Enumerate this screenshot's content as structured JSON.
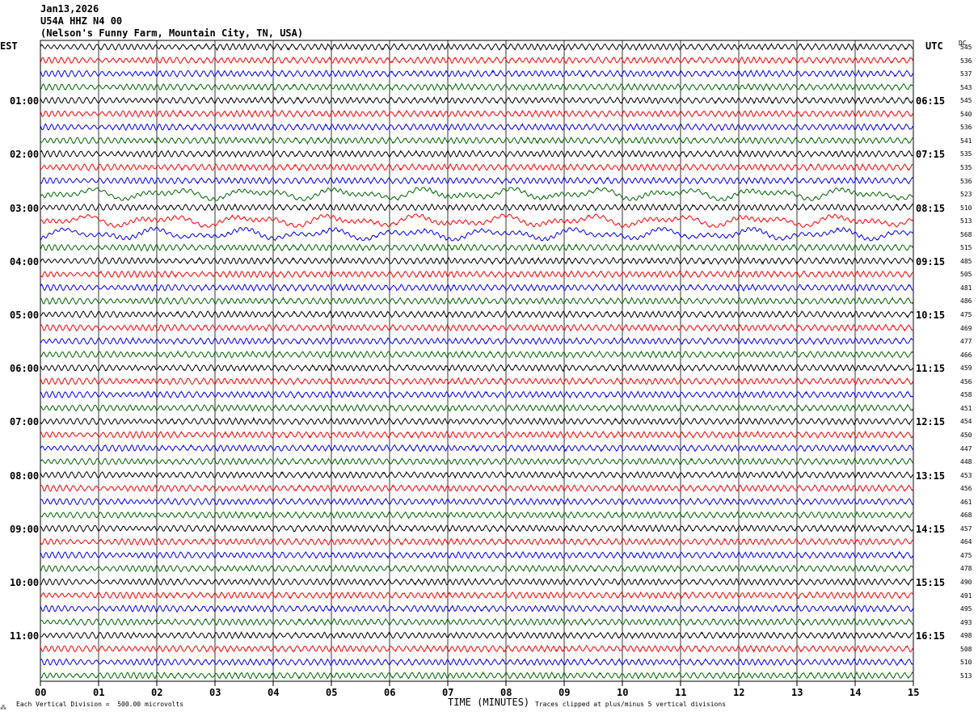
{
  "header": {
    "date": "Jan13,2026",
    "station": "U54A HHZ N4 00",
    "location": "(Nelson's Funny Farm, Mountain City, TN, USA)"
  },
  "left_axis_label": "EST",
  "right_axis_label": "UTC",
  "dc_header": "DC",
  "footer": {
    "vertical_division": "Each Vertical Division =  500.00 microvolts",
    "xlabel": "TIME (MINUTES)",
    "clip_note": "Traces clipped at plus/minus 5 vertical divisions"
  },
  "chart_data": {
    "type": "line",
    "title": "",
    "xlabel": "TIME (MINUTES)",
    "ylabel": "",
    "xlim": [
      0,
      15
    ],
    "x_ticks": [
      "00",
      "01",
      "02",
      "03",
      "04",
      "05",
      "06",
      "07",
      "08",
      "09",
      "10",
      "11",
      "12",
      "13",
      "14",
      "15"
    ],
    "trace_colors": [
      "#000000",
      "#ff0000",
      "#0000ff",
      "#006400"
    ],
    "grid": "vertical-minute-lines",
    "left_hour_labels": [
      "01:00",
      "02:00",
      "03:00",
      "04:00",
      "05:00",
      "06:00",
      "07:00",
      "08:00",
      "09:00",
      "10:00",
      "11:00"
    ],
    "right_hour_labels": [
      "06:15",
      "07:15",
      "08:15",
      "09:15",
      "10:15",
      "11:15",
      "12:15",
      "13:15",
      "14:15",
      "15:15",
      "16:15"
    ],
    "dc_offsets": [
      "545",
      "536",
      "537",
      "543",
      "545",
      "540",
      "536",
      "541",
      "535",
      "535",
      "536",
      "523",
      "510",
      "513",
      "568",
      "515",
      "485",
      "505",
      "481",
      "486",
      "475",
      "469",
      "477",
      "466",
      "459",
      "456",
      "458",
      "451",
      "454",
      "450",
      "447",
      "448",
      "453",
      "456",
      "461",
      "468",
      "457",
      "464",
      "475",
      "478",
      "490",
      "491",
      "495",
      "493",
      "498",
      "508",
      "510",
      "513"
    ],
    "trace_count": 48,
    "high_activity_traces": [
      11,
      13,
      14
    ]
  }
}
